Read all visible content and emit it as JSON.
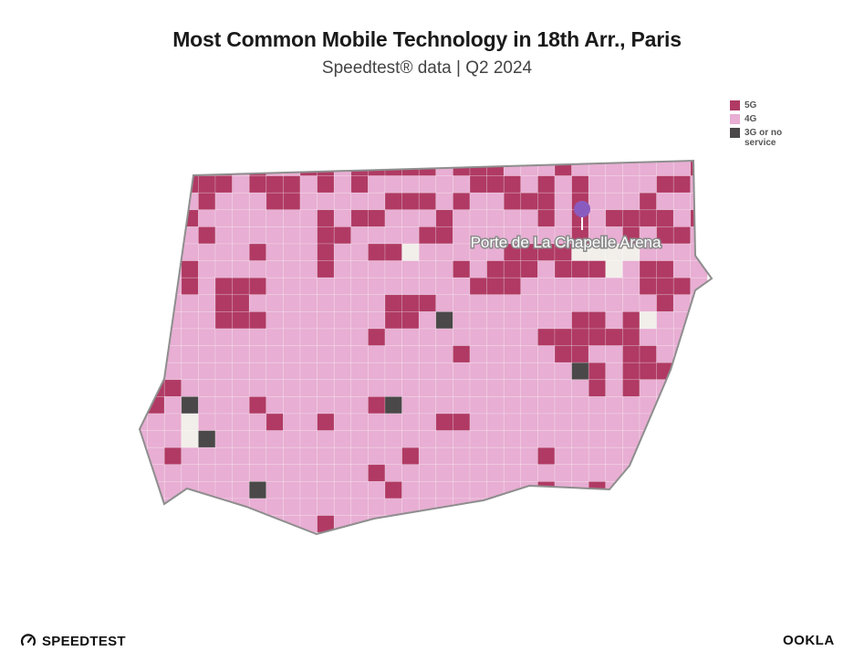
{
  "header": {
    "title": "Most Common Mobile Technology in 18th Arr., Paris",
    "subtitle": "Speedtest® data | Q2 2024"
  },
  "legend": {
    "items": [
      {
        "label": "5G",
        "color": "#b03a64"
      },
      {
        "label": "4G",
        "color": "#e8aed3"
      },
      {
        "label": "3G or no service",
        "color": "#4a4848"
      }
    ]
  },
  "colors": {
    "five_g": "#b03a64",
    "four_g": "#e8aed3",
    "three_g": "#4a4848",
    "no_data": "#f2efea",
    "boundary": "#8e8e8e",
    "marker": "#8a5bbf"
  },
  "map": {
    "marker_label": "Porte de La Chapelle Arena"
  },
  "footer": {
    "left_brand": "SPEEDTEST",
    "right_brand": "OOKLA"
  }
}
